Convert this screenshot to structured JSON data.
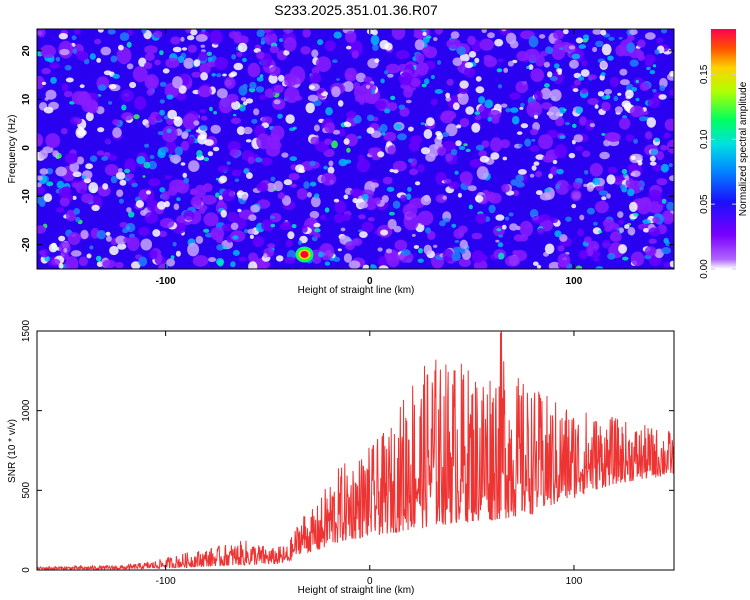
{
  "figure_title": "S233.2025.351.01.36.R07",
  "chart_data": [
    {
      "type": "heatmap",
      "title": "S233.2025.351.01.36.R07",
      "xlabel": "Height of straight line (km)",
      "ylabel": "Frequency (Hz)",
      "xlim": [
        -163,
        149
      ],
      "ylim": [
        -25,
        24.5
      ],
      "x_ticks": [
        -100,
        0,
        100
      ],
      "y_ticks": [
        -20,
        -10,
        0,
        10,
        20
      ],
      "colorbar": {
        "label": "Normalized spectral amplitude",
        "range": [
          0.0,
          0.185
        ],
        "ticks": [
          "0.00",
          "0.05",
          "0.10",
          "0.15"
        ],
        "tick_values": [
          0.0,
          0.05,
          0.1,
          0.15
        ],
        "colormap": "rainbow (purple-blue-cyan-green-yellow-red)"
      },
      "notable_peak": {
        "x": -32,
        "y": -22,
        "value": 0.18
      }
    },
    {
      "type": "line",
      "xlabel": "Height of straight line (km)",
      "ylabel": "SNR (10 * v/v)",
      "xlim": [
        -163,
        149
      ],
      "ylim": [
        0,
        1500
      ],
      "x_ticks": [
        -100,
        0,
        100
      ],
      "y_ticks": [
        0,
        500,
        1000,
        1500
      ],
      "series": [
        {
          "name": "SNR",
          "color": "#ee3333",
          "envelope_x": [
            -163,
            -120,
            -105,
            -90,
            -75,
            -60,
            -48,
            -40,
            -36,
            -33,
            -30,
            -25,
            -20,
            -15,
            -10,
            0,
            10,
            15,
            20,
            25,
            30,
            35,
            40,
            50,
            60,
            65,
            70,
            80,
            90,
            100,
            110,
            120,
            130,
            140,
            149
          ],
          "envelope_lower": [
            5,
            5,
            10,
            15,
            25,
            30,
            35,
            40,
            90,
            110,
            110,
            120,
            150,
            170,
            190,
            210,
            230,
            240,
            250,
            260,
            270,
            280,
            290,
            300,
            310,
            320,
            330,
            350,
            400,
            450,
            500,
            540,
            560,
            580,
            600
          ],
          "envelope_upper": [
            20,
            30,
            60,
            110,
            150,
            190,
            140,
            160,
            280,
            380,
            360,
            420,
            580,
            650,
            700,
            780,
            900,
            1050,
            1290,
            1220,
            1420,
            1300,
            1360,
            1280,
            1350,
            1550,
            1250,
            1150,
            1080,
            1050,
            990,
            960,
            920,
            900,
            880
          ]
        }
      ]
    }
  ],
  "colors": {
    "snr_line": "#ee3333",
    "frame": "#000000",
    "background": "#ffffff"
  }
}
